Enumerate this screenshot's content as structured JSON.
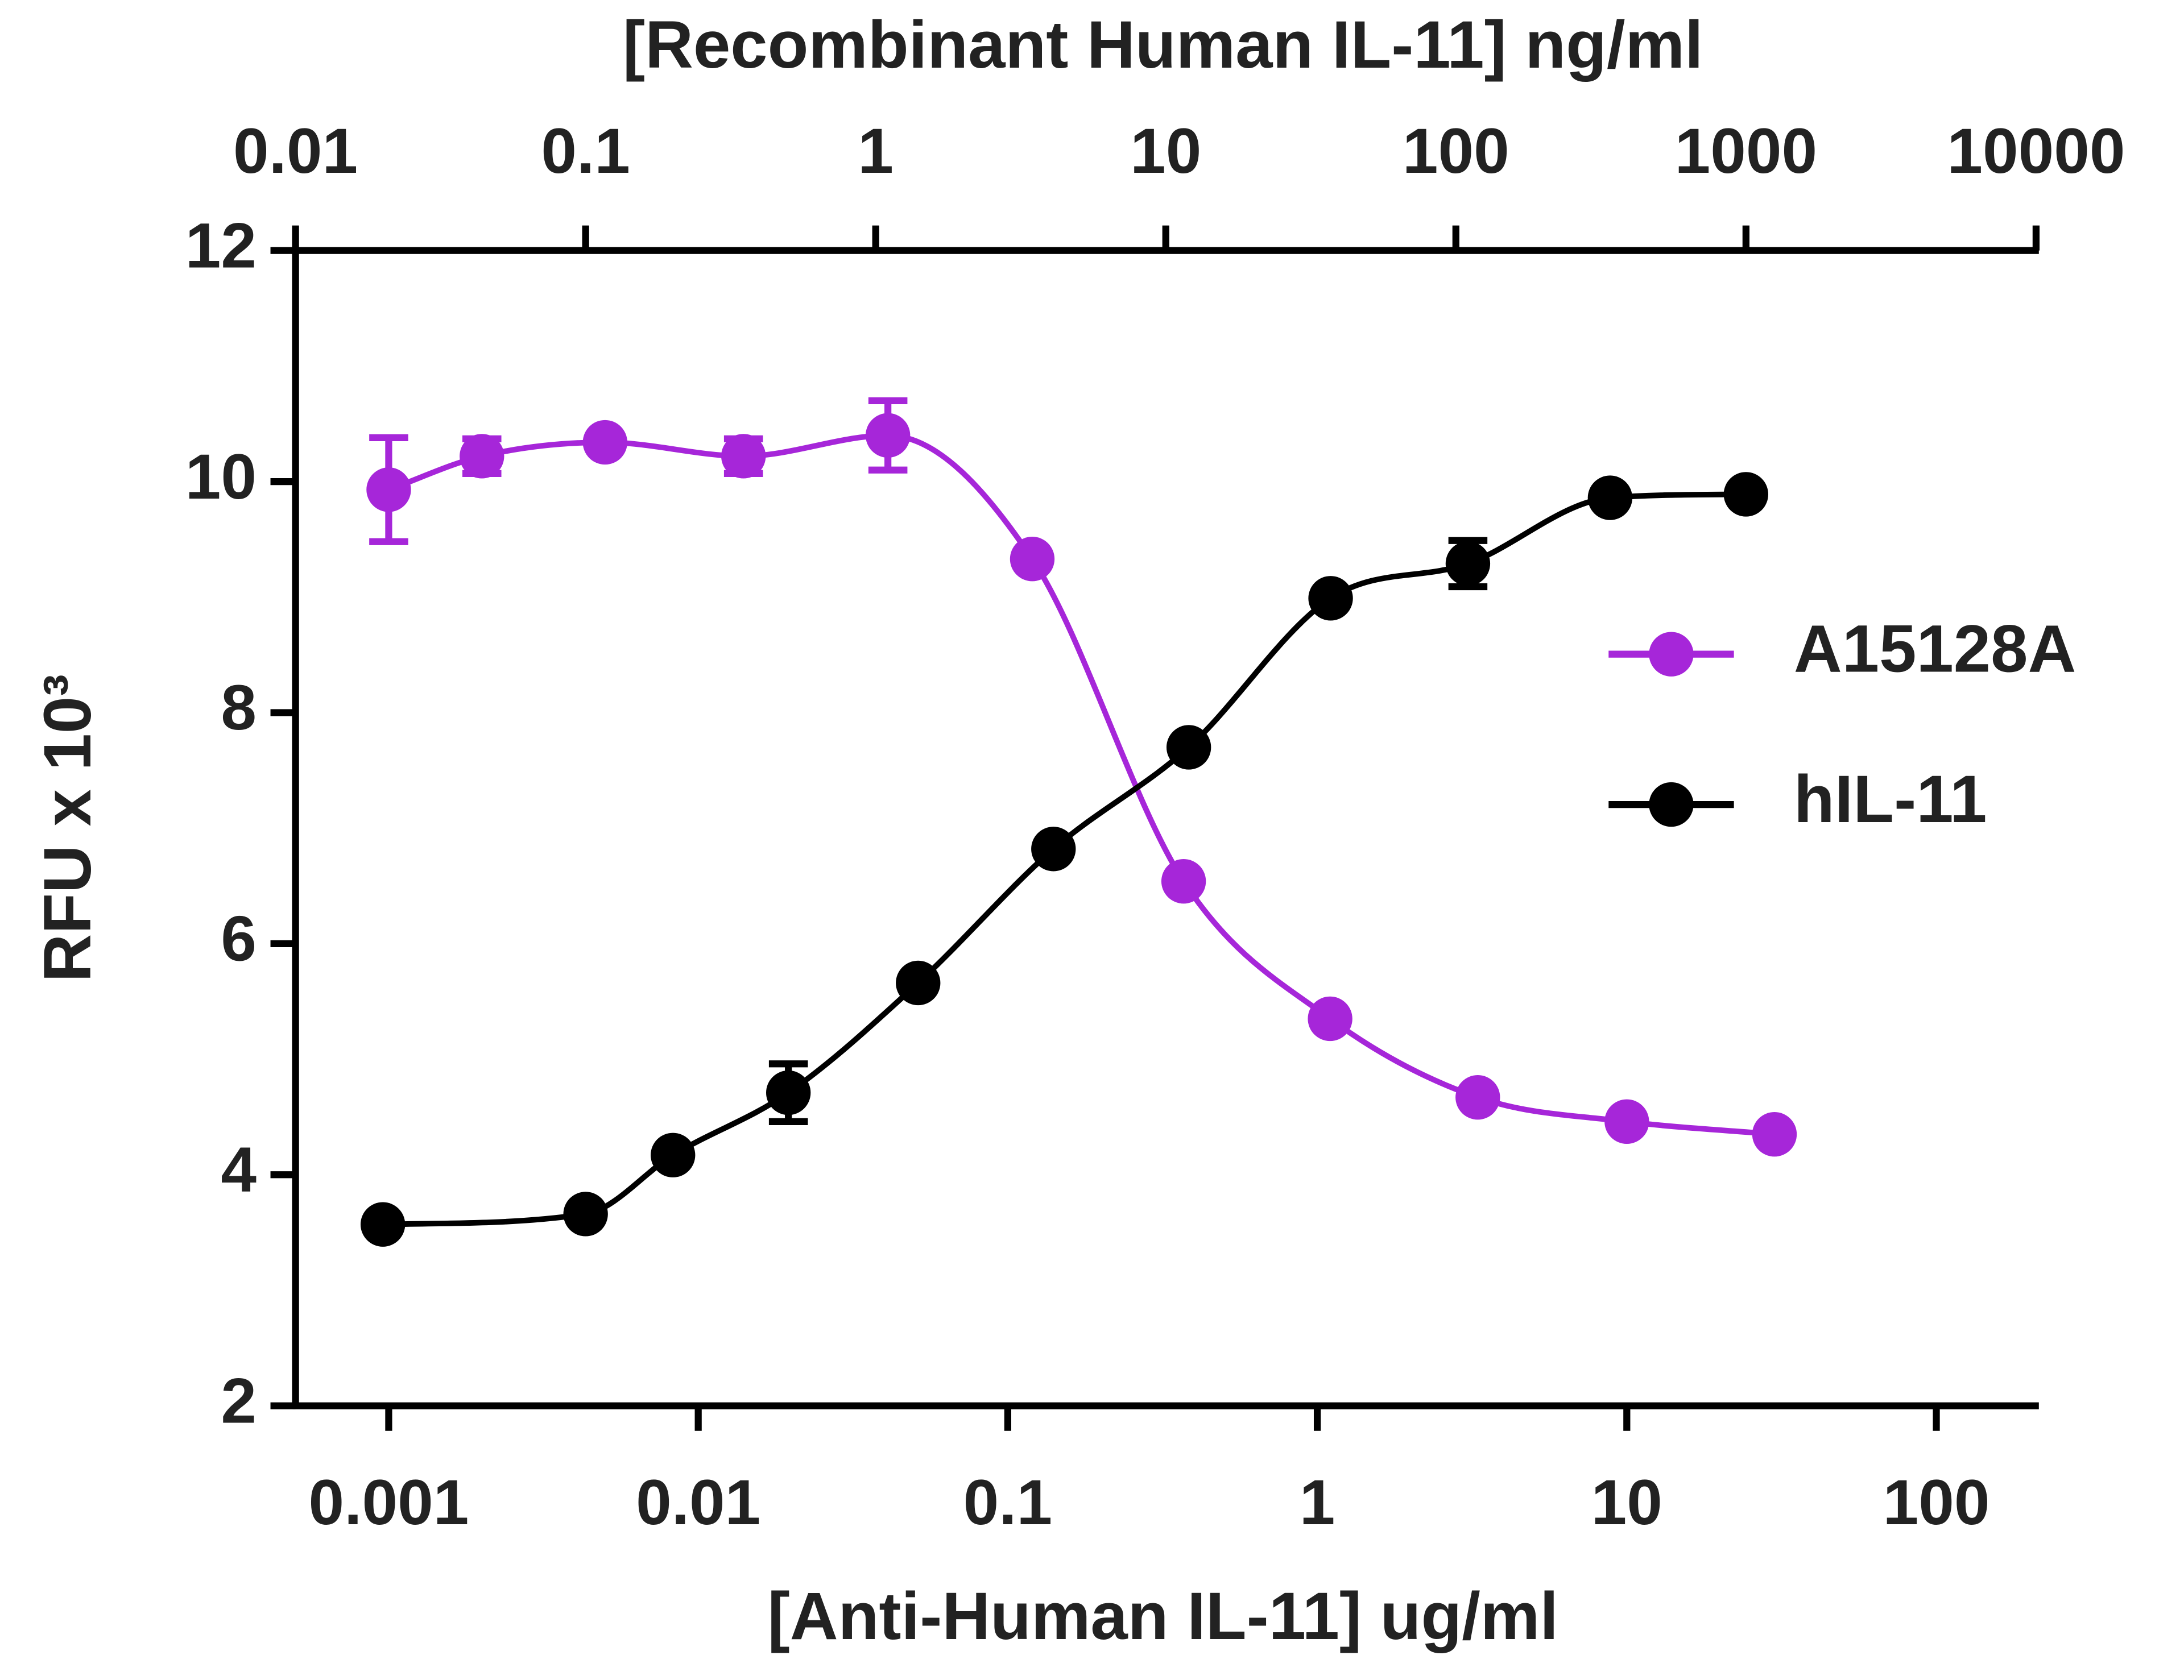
{
  "chart_data": {
    "type": "line",
    "x2label": "[Recombinant Human IL-11] ng/ml",
    "xlabel": "[Anti-Human IL-11] ug/ml",
    "ylabel": "RFU x 10³",
    "xscale": "log",
    "x2scale": "log",
    "xlim": [
      0.0005,
      210
    ],
    "xticks": [
      0.001,
      0.01,
      0.1,
      1,
      10,
      100
    ],
    "x2lim": [
      0.01,
      10000
    ],
    "x2ticks": [
      0.01,
      0.1,
      1,
      10,
      100,
      1000,
      10000
    ],
    "ylim": [
      2,
      12
    ],
    "yticks": [
      2,
      4,
      6,
      8,
      10,
      12
    ],
    "legend": "right",
    "series": [
      {
        "name": "A15128A",
        "color": "#a626d9",
        "xaxis": "x",
        "x": [
          0.001,
          0.002,
          0.005,
          0.014,
          0.041,
          0.12,
          0.37,
          1.1,
          3.3,
          10,
          30
        ],
        "values": [
          9.93,
          10.22,
          10.34,
          10.22,
          10.4,
          9.33,
          6.54,
          5.35,
          4.67,
          4.46,
          4.35
        ],
        "errors": [
          0.45,
          0.15,
          0.05,
          0.15,
          0.3,
          0.05,
          0.05,
          0.05,
          0.05,
          0.05,
          0.05
        ]
      },
      {
        "name": "hIL-11",
        "color": "#000000",
        "xaxis": "x2",
        "x": [
          0.02,
          0.1,
          0.2,
          0.5,
          1.4,
          4.1,
          12,
          37,
          110,
          340,
          1000
        ],
        "values": [
          3.57,
          3.66,
          4.17,
          4.71,
          5.66,
          6.82,
          7.7,
          8.99,
          9.29,
          9.86,
          9.89
        ],
        "errors": [
          0.05,
          0.05,
          0.05,
          0.25,
          0.05,
          0.05,
          0.05,
          0.05,
          0.2,
          0.05,
          0.05
        ]
      }
    ]
  }
}
